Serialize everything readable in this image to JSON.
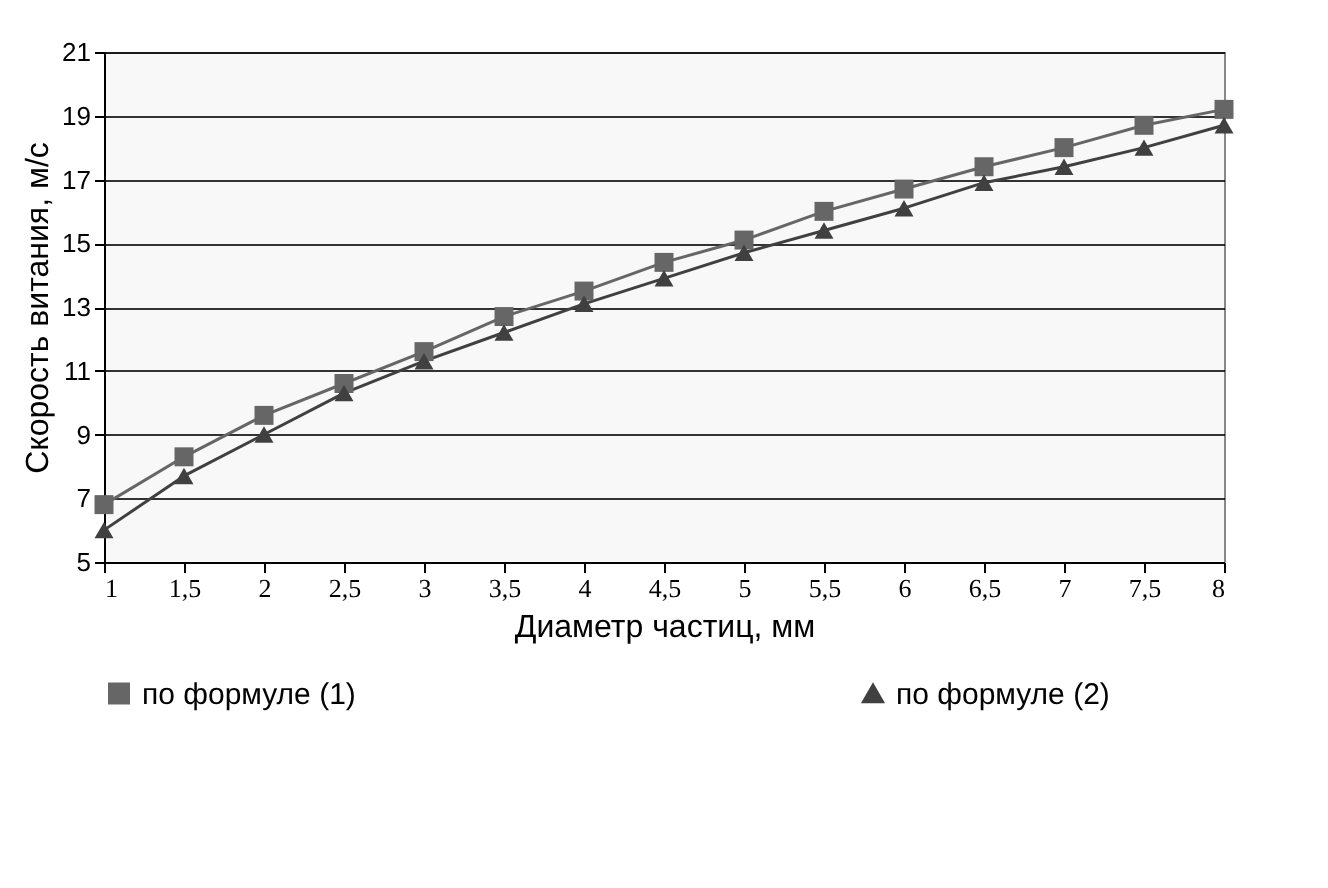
{
  "chart_data": {
    "type": "line",
    "xlabel": "Диаметр частиц, мм",
    "ylabel": "Скорость витания, м/с",
    "categories": [
      "1",
      "1,5",
      "2",
      "2,5",
      "3",
      "3,5",
      "4",
      "4,5",
      "5",
      "5,5",
      "6",
      "6,5",
      "7",
      "7,5",
      "8"
    ],
    "series": [
      {
        "name": "по формуле (1)",
        "color": "#666666",
        "marker": "square",
        "values": [
          6.8,
          8.3,
          9.6,
          10.6,
          11.6,
          12.7,
          13.5,
          14.4,
          15.1,
          16.0,
          16.7,
          17.4,
          18.0,
          18.7,
          19.2
        ]
      },
      {
        "name": "по формуле (2)",
        "color": "#404040",
        "marker": "triangle",
        "values": [
          6.0,
          7.7,
          9.0,
          10.3,
          11.3,
          12.2,
          13.1,
          13.9,
          14.7,
          15.4,
          16.1,
          16.9,
          17.4,
          18.0,
          18.7
        ]
      }
    ],
    "ylim": [
      5,
      21
    ],
    "yticks": [
      5,
      7,
      9,
      11,
      13,
      15,
      17,
      19,
      21
    ],
    "grid": "y",
    "legend": "bottom",
    "line_style": "solid"
  }
}
